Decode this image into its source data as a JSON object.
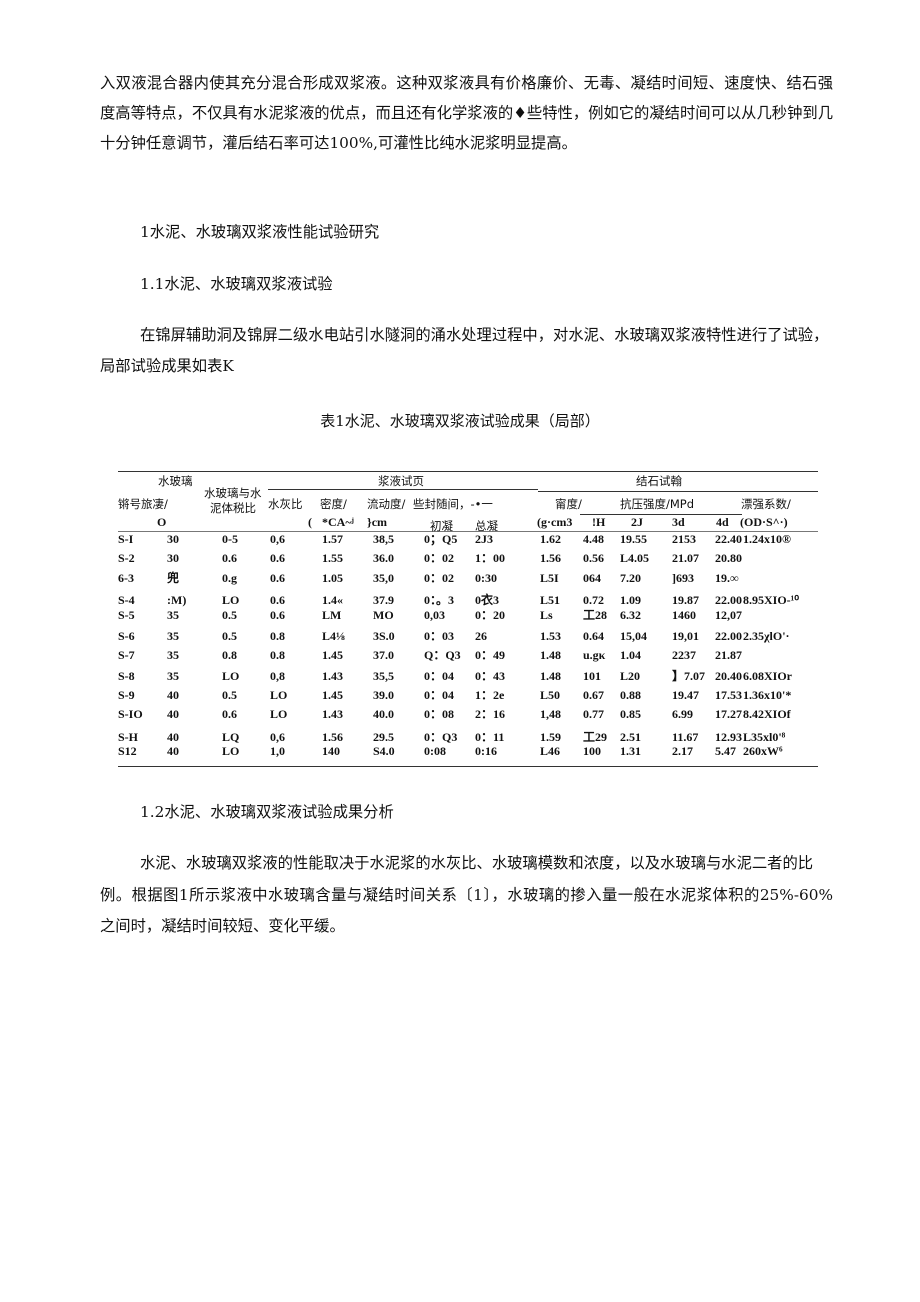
{
  "paragraph1": [
    "入双液混合器内使其充分混合形成双浆液。这种双浆液具有价格廉价、无毒、凝结时间短、速度快、结石强",
    "度高等特点，不仅具有水泥浆液的优点，而且还有化学浆液的♦些特性，例如它的凝结时间可以从几秒钟到几",
    "十分钟任意调节，灌后结石率可达100%,可灌性比纯水泥浆明显提高。"
  ],
  "heading1": "1水泥、水玻璃双浆液性能试验研究",
  "heading1_1": "1.1水泥、水玻璃双浆液试验",
  "paragraph2": [
    "在锦屏辅助洞及锦屏二级水电站引水隧洞的涌水处理过程中，对水泥、水玻璃双浆液特性进行了试验，",
    "局部试验成果如表K"
  ],
  "table_caption": "表1水泥、水玻璃双浆液试验成果（局部）",
  "table": {
    "headers": {
      "water_glass_top": "水玻璃",
      "id_label": "锵号旅凄/",
      "water_glass_unit": "O",
      "ratio_l1": "水玻璃与水",
      "ratio_l2": "泥体税比",
      "group_slurry": "浆液试页",
      "group_stone": "结石试翰",
      "wc_ratio": "水灰比",
      "density": "密度/",
      "density_unit_paren": "(",
      "density_unit": "*CA~ʲ",
      "fluidity": "流动度/",
      "fluidity_unit": "}cm",
      "set_time": "些封随间，-•一",
      "initial_set": "初凝",
      "final_set": "总凝",
      "stone_density": "甯度/",
      "stone_density_unit": "(g·cm3",
      "strength": "抗压强度/MPd",
      "s1": "!H",
      "s2": "2J",
      "s3": "3d",
      "s4": "4d",
      "coef": "漂强系数/",
      "coef_unit": "(OD·S^·)"
    },
    "rows": [
      [
        "S-I",
        "30",
        "0-5",
        "0,6",
        "1.57",
        "38,5",
        "0；Q5",
        "2J3",
        "1.62",
        "4.48",
        "19.55",
        "2153",
        "22.40",
        "1.24x10®"
      ],
      [
        "S-2",
        "30",
        "0.6",
        "0.6",
        "1.55",
        "36.0",
        "0：02",
        "1：00",
        "1.56",
        "0.56",
        "L4.05",
        "21.07",
        "20.80",
        ""
      ],
      [
        "6-3",
        "兜",
        "0.g",
        "0.6",
        "1.05",
        "35,0",
        "0：02",
        "0:30",
        "L5I",
        "064",
        "7.20",
        "]693",
        "19.∞",
        ""
      ],
      [
        "S-4",
        ":M)",
        "LO",
        "0.6",
        "1.4«",
        "37.9",
        "0：。3",
        "0衣3",
        "L51",
        "0.72",
        "1.09",
        "19.87",
        "22.00",
        "8.95XIO-¹⁰"
      ],
      [
        "S-5",
        "35",
        "0.5",
        "0.6",
        "LM",
        "MO",
        "0,03",
        "0：20",
        "Ls",
        "工28",
        "6.32",
        "1460",
        "12,07",
        ""
      ],
      [
        "S-6",
        "35",
        "0.5",
        "0.8",
        "L4⅛",
        "3S.0",
        "0：03",
        "26",
        "1.53",
        "0.64",
        "15,04",
        "19,01",
        "22.00",
        "2.35χlO'·"
      ],
      [
        "S-7",
        "35",
        "0.8",
        "0.8",
        "1.45",
        "37.0",
        "Q：Q3",
        "0：49",
        "1.48",
        "u.gκ",
        "1.04",
        "2237",
        "21.87",
        ""
      ],
      [
        "S-8",
        "35",
        "LO",
        "0,8",
        "1.43",
        "35,5",
        "0：04",
        "0：43",
        "1.48",
        "101",
        "L20",
        "】7.07",
        "20.40",
        "6.08XIOr"
      ],
      [
        "S-9",
        "40",
        "0.5",
        "LO",
        "1.45",
        "39.0",
        "0：04",
        "1：2e",
        "L50",
        "0.67",
        "0.88",
        "19.47",
        "17.53",
        "1.36x10'*"
      ],
      [
        "S-IO",
        "40",
        "0.6",
        "LO",
        "1.43",
        "40.0",
        "0：08",
        "2：16",
        "1,48",
        "0.77",
        "0.85",
        "6.99",
        "17.27",
        "8.42XIOf"
      ],
      [
        "S-H",
        "40",
        "LQ",
        "0,6",
        "1.56",
        "29.5",
        "0：Q3",
        "0：11",
        "1.59",
        "工29",
        "2.51",
        "11.67",
        "12.93",
        "L35xl0'⁸"
      ],
      [
        "S12",
        "40",
        "LO",
        "1,0",
        "140",
        "S4.0",
        "0:08",
        "0:16",
        "L46",
        "100",
        "1.31",
        "2.17",
        "5.47",
        "260xW⁶"
      ]
    ]
  },
  "heading1_2": "1.2水泥、水玻璃双浆液试验成果分析",
  "paragraph3": [
    "水泥、水玻璃双浆液的性能取决于水泥浆的水灰比、水玻璃模数和浓度，以及水玻璃与水泥二者的比",
    "例。根据图1所示浆液中水玻璃含量与凝结时间关系〔1〕，水玻璃的掺入量一般在水泥浆体积的25%-60%",
    "之间时，凝结时间较短、变化平缓。"
  ]
}
